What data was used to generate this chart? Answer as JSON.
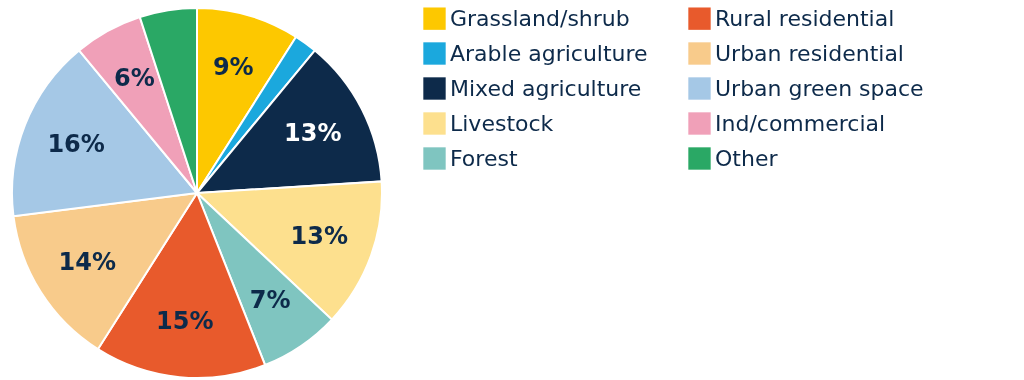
{
  "chart_data": {
    "type": "pie",
    "categories": [
      "Grassland/shrub",
      "Arable agriculture",
      "Mixed agriculture",
      "Livestock",
      "Forest",
      "Rural residential",
      "Urban residential",
      "Urban green space",
      "Ind/commercial",
      "Other"
    ],
    "values": [
      9,
      2,
      13,
      13,
      7,
      15,
      14,
      16,
      6,
      5
    ],
    "colors": [
      "#fdc800",
      "#1ba8dd",
      "#0d2a4a",
      "#fde08e",
      "#7fc5c0",
      "#e85a2c",
      "#f8cb8b",
      "#a5c8e6",
      "#f0a0b8",
      "#2aa865"
    ],
    "value_labels": [
      "9%",
      null,
      "13%",
      "13%",
      "7%",
      "15%",
      "14%",
      "16%",
      "6%",
      null
    ],
    "legend": "right"
  }
}
